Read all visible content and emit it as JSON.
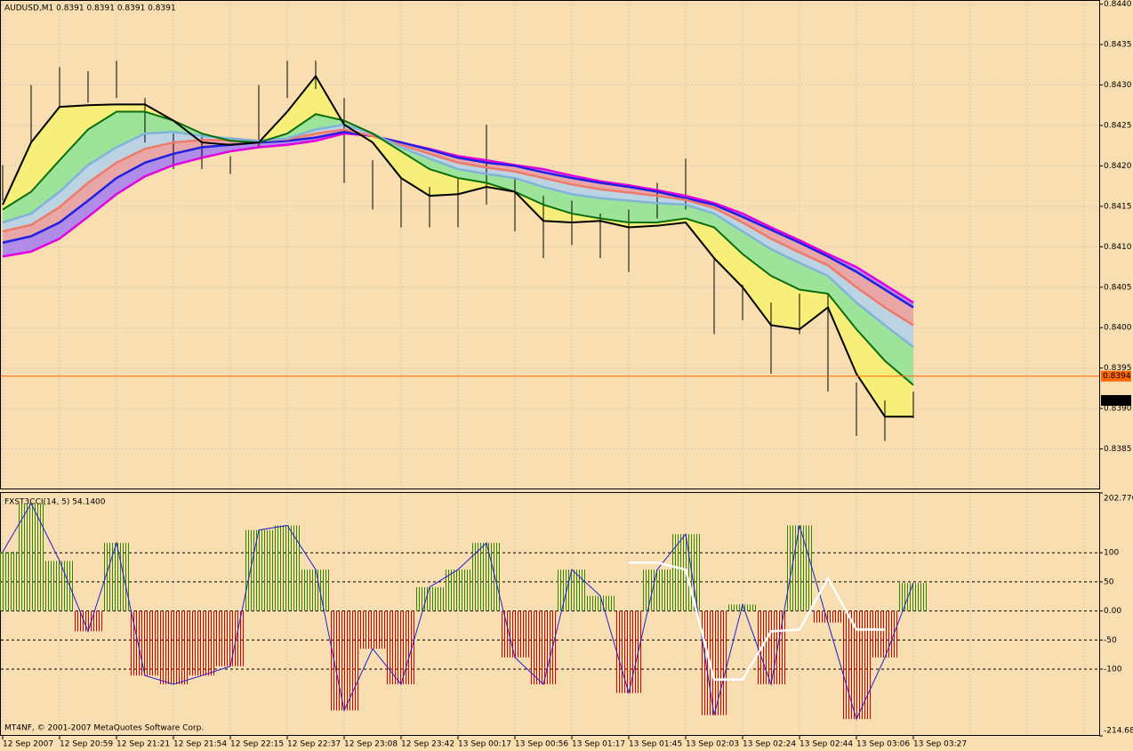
{
  "chart_data": [
    {
      "type": "price",
      "title": "AUDUSD,M1  0.8391 0.8391 0.8391 0.8391",
      "x": [
        "12 Sep 2007",
        null,
        "12 Sep 20:59",
        null,
        "12 Sep 21:21",
        null,
        "12 Sep 21:54",
        null,
        "12 Sep 22:15",
        null,
        "12 Sep 22:37",
        null,
        "12 Sep 23:08",
        null,
        "12 Sep 23:42",
        null,
        "13 Sep 00:17",
        null,
        "13 Sep 00:56",
        null,
        "13 Sep 01:17",
        null,
        "13 Sep 01:45",
        null,
        "13 Sep 02:03",
        null,
        "13 Sep 02:24",
        null,
        "13 Sep 02:44",
        null,
        "13 Sep 03:06",
        null,
        "13 Sep 03:27"
      ],
      "high": [
        0.84201,
        0.843,
        0.84322,
        0.84317,
        0.8433,
        0.84284,
        0.8424,
        0.8424,
        0.84212,
        0.843,
        0.8433,
        0.8433,
        0.84284,
        0.84207,
        0.84185,
        0.84174,
        0.84185,
        0.84251,
        0.84185,
        0.84163,
        0.84157,
        0.84141,
        0.84146,
        0.84179,
        0.84209,
        0.84086,
        0.84053,
        0.84031,
        0.84042,
        0.84042,
        0.83932,
        0.8391,
        0.83921
      ],
      "low": [
        0.84157,
        0.84229,
        0.84273,
        0.84278,
        0.84284,
        0.84229,
        0.84196,
        0.84196,
        0.8419,
        0.84223,
        0.84284,
        0.84295,
        0.84179,
        0.84146,
        0.84124,
        0.84124,
        0.84124,
        0.84152,
        0.84119,
        0.84086,
        0.84102,
        0.84086,
        0.84069,
        0.84135,
        0.84146,
        0.83992,
        0.84009,
        0.83943,
        0.83992,
        0.83921,
        0.83866,
        0.8386,
        0.83888
      ],
      "bar_color": "#000000",
      "series": [
        {
          "color": "#000000",
          "fill": "#f7ef7a",
          "values": [
            0.84152,
            0.84229,
            0.84273,
            0.84275,
            0.84276,
            0.84276,
            0.84256,
            0.84229,
            0.84226,
            0.84229,
            0.84267,
            0.84311,
            0.84251,
            0.84229,
            0.84185,
            0.84163,
            0.84165,
            0.84174,
            0.84168,
            0.84132,
            0.8413,
            0.84132,
            0.84124,
            0.84126,
            0.8413,
            0.84086,
            0.8405,
            0.84003,
            0.83998,
            0.84025,
            0.83943,
            0.8389,
            0.8389
          ]
        },
        {
          "color": "#0a6e0a",
          "fill": "#9ee39a",
          "values": [
            0.84146,
            0.84168,
            0.84207,
            0.84245,
            0.84267,
            0.84267,
            0.84256,
            0.8424,
            0.84231,
            0.84229,
            0.8424,
            0.84264,
            0.84256,
            0.8424,
            0.84218,
            0.84196,
            0.84185,
            0.84179,
            0.84168,
            0.84152,
            0.84141,
            0.84135,
            0.8413,
            0.8413,
            0.84135,
            0.84124,
            0.84091,
            0.84064,
            0.84047,
            0.84042,
            0.83998,
            0.83959,
            0.83929
          ]
        },
        {
          "color": "#7fb4d8",
          "fill": "#bcd3e4",
          "values": [
            0.8413,
            0.84141,
            0.84168,
            0.84201,
            0.84223,
            0.8424,
            0.84242,
            0.84237,
            0.84234,
            0.84231,
            0.84234,
            0.84245,
            0.84251,
            0.8424,
            0.84223,
            0.84209,
            0.84196,
            0.8419,
            0.84185,
            0.84174,
            0.84165,
            0.8416,
            0.84157,
            0.84154,
            0.84152,
            0.84141,
            0.84119,
            0.84097,
            0.8408,
            0.84064,
            0.84031,
            0.84003,
            0.83976
          ]
        },
        {
          "color": "#f07a68",
          "fill": "#e9a6a6",
          "values": [
            0.84119,
            0.84127,
            0.84149,
            0.84179,
            0.84204,
            0.84221,
            0.84229,
            0.84232,
            0.84232,
            0.84231,
            0.84233,
            0.8424,
            0.84245,
            0.84237,
            0.84226,
            0.84215,
            0.84204,
            0.84198,
            0.84193,
            0.84185,
            0.84177,
            0.84171,
            0.84167,
            0.84163,
            0.84158,
            0.84148,
            0.8413,
            0.8411,
            0.84093,
            0.84077,
            0.8405,
            0.84025,
            0.84003
          ]
        },
        {
          "color": "#2020e0",
          "fill": "#b08ce8",
          "values": [
            0.84105,
            0.84113,
            0.8413,
            0.84157,
            0.84185,
            0.84204,
            0.84215,
            0.84223,
            0.84226,
            0.84229,
            0.84231,
            0.84235,
            0.84242,
            0.84237,
            0.84229,
            0.8422,
            0.8421,
            0.84204,
            0.842,
            0.84192,
            0.84185,
            0.84179,
            0.84174,
            0.84168,
            0.8416,
            0.84152,
            0.84137,
            0.84121,
            0.84105,
            0.84088,
            0.84069,
            0.84047,
            0.84025
          ]
        },
        {
          "color": "#e000e0",
          "values": [
            0.84088,
            0.84094,
            0.8411,
            0.84137,
            0.84165,
            0.84187,
            0.84201,
            0.8421,
            0.84218,
            0.84223,
            0.84226,
            0.84231,
            0.8424,
            0.84237,
            0.84229,
            0.84221,
            0.84212,
            0.84207,
            0.84201,
            0.84196,
            0.84188,
            0.84181,
            0.84176,
            0.8417,
            0.84163,
            0.84154,
            0.84141,
            0.84124,
            0.84108,
            0.84091,
            0.84075,
            0.84053,
            0.84031
          ]
        }
      ],
      "ylim": [
        0.838,
        0.84404
      ],
      "yticks": [
        {
          "value": 0.8385,
          "label": "0.8385"
        },
        {
          "value": 0.839,
          "label": "0.8390"
        },
        {
          "value": 0.8395,
          "label": "0.8395"
        },
        {
          "value": 0.84,
          "label": "0.8400"
        },
        {
          "value": 0.8405,
          "label": "0.8405"
        },
        {
          "value": 0.841,
          "label": "0.8410"
        },
        {
          "value": 0.8415,
          "label": "0.8415"
        },
        {
          "value": 0.842,
          "label": "0.8420"
        },
        {
          "value": 0.8425,
          "label": "0.8425"
        },
        {
          "value": 0.843,
          "label": "0.8430"
        },
        {
          "value": 0.8435,
          "label": "0.8435"
        },
        {
          "value": 0.844,
          "label": "0.8440"
        }
      ],
      "grid": true,
      "price_labels": [
        {
          "value": 0.8394,
          "label": "0.8394",
          "color": "#ff6600",
          "line": true
        },
        {
          "value": 0.8391,
          "label": "0.8391",
          "color": "#000000",
          "line": false
        }
      ]
    },
    {
      "type": "cci",
      "title": "FXST3CCI(14, 5) 54.1400",
      "footer": "MT4NF, © 2001-2007 MetaQuotes Software Corp.",
      "values": [
        101.5,
        185,
        86,
        -35,
        117,
        -111,
        -126,
        -111,
        -95,
        139,
        147,
        71,
        -171,
        -65,
        -126,
        41,
        71,
        117,
        -80,
        -126,
        71,
        26,
        -141,
        71,
        132,
        -179,
        11,
        -126,
        147,
        -20,
        -186,
        -80,
        48
      ],
      "color": "#2020d0",
      "up_color": "#2f8a00",
      "down_color": "#d40000",
      "signal": {
        "color": "#ffffff",
        "values": [
          null,
          null,
          null,
          null,
          null,
          null,
          null,
          null,
          null,
          null,
          null,
          null,
          null,
          null,
          null,
          null,
          null,
          null,
          null,
          null,
          null,
          null,
          83,
          83,
          71,
          -118,
          -118,
          -35,
          -32,
          56,
          -32,
          -32,
          null
        ]
      },
      "ylim": [
        -214.685,
        202.7762
      ],
      "yticks": [
        -214.685,
        -100,
        -50,
        {
          "value": 0,
          "label": "0.00"
        },
        50,
        100,
        202.7762
      ],
      "grid": true
    }
  ]
}
